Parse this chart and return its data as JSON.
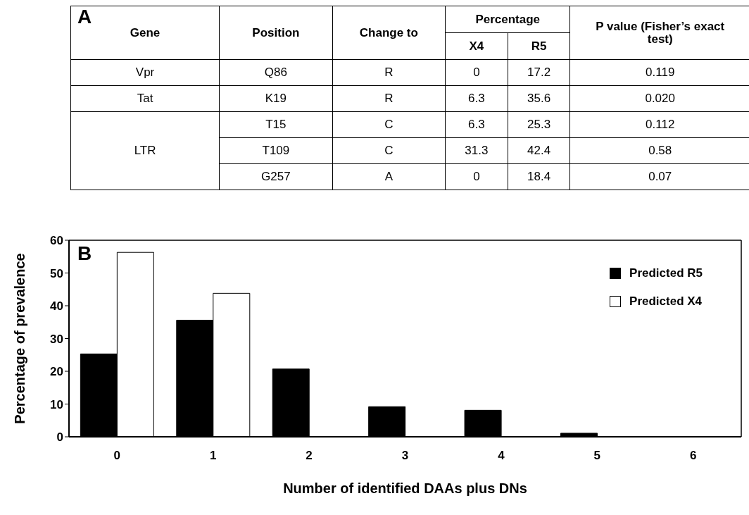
{
  "chart_data": [
    {
      "type": "other",
      "title": "A",
      "annotations": [
        "Gene",
        "Position",
        "Change to",
        "Percentage",
        "P value (Fisher’s exact test)",
        "X4",
        "R5",
        "Vpr",
        "Q86",
        "R",
        "0",
        "17.2",
        "0.119",
        "Tat",
        "K19",
        "R",
        "6.3",
        "35.6",
        "0.020",
        "LTR",
        "T15",
        "C",
        "6.3",
        "25.3",
        "0.112",
        "T109",
        "C",
        "31.3",
        "42.4",
        "0.58",
        "G257",
        "A",
        "0",
        "18.4",
        "0.07"
      ]
    },
    {
      "type": "bar",
      "title": "B",
      "xlabel": "Number of identified DAAs plus DNs",
      "ylabel": "Percentage of prevalence",
      "categories": [
        "0",
        "1",
        "2",
        "3",
        "4",
        "5",
        "6"
      ],
      "series": [
        {
          "name": "Predicted R5",
          "color": "#000000",
          "values": [
            25.3,
            35.6,
            20.7,
            9.2,
            8.1,
            1.1,
            0
          ]
        },
        {
          "name": "Predicted X4",
          "color": "#ffffff",
          "values": [
            56.3,
            43.8,
            0,
            0,
            0,
            0,
            0
          ]
        }
      ],
      "ylim": [
        0,
        60
      ],
      "yticks": [
        0,
        10,
        20,
        30,
        40,
        50,
        60
      ],
      "legend": "top right"
    }
  ]
}
